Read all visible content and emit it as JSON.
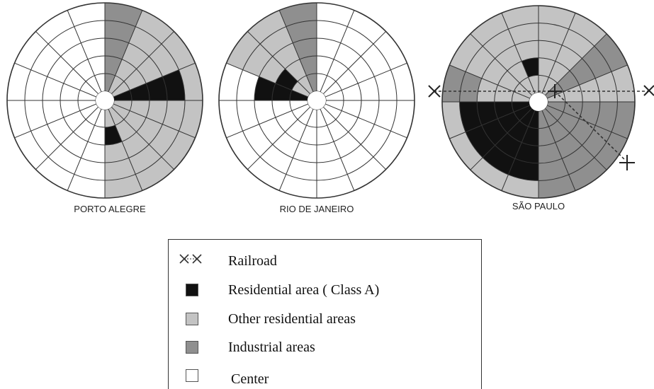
{
  "colors": {
    "class_a": "#111111",
    "other_residential": "#c3c3c3",
    "industrial": "#8f8f8f",
    "center": "#ffffff",
    "line": "#333333"
  },
  "cities": [
    {
      "label": "PORTO ALEGRE",
      "rings": 6,
      "sectors": 16,
      "regions": [
        {
          "category": "industrial",
          "from_sector": 0,
          "to_sector": 1,
          "from_ring": 1,
          "to_ring": 6
        },
        {
          "category": "other_residential",
          "from_sector": 1,
          "to_sector": 4,
          "from_ring": 1,
          "to_ring": 6
        },
        {
          "category": "class_a",
          "from_sector": 3,
          "to_sector": 4,
          "from_ring": 1,
          "to_ring": 5
        },
        {
          "category": "other_residential",
          "from_sector": 4,
          "to_sector": 8,
          "from_ring": 1,
          "to_ring": 6
        },
        {
          "category": "class_a",
          "from_sector": 7,
          "to_sector": 8,
          "from_ring": 2,
          "to_ring": 3
        }
      ]
    },
    {
      "label": "RIO DE JANEIRO",
      "rings": 6,
      "sectors": 16,
      "regions": [
        {
          "category": "industrial",
          "from_sector": 15,
          "to_sector": 16,
          "from_ring": 1,
          "to_ring": 6
        },
        {
          "category": "other_residential",
          "from_sector": 13,
          "to_sector": 15,
          "from_ring": 1,
          "to_ring": 6
        },
        {
          "category": "class_a",
          "from_sector": 13,
          "to_sector": 14,
          "from_ring": 2,
          "to_ring": 3
        },
        {
          "category": "class_a",
          "from_sector": 12,
          "to_sector": 13,
          "from_ring": 1,
          "to_ring": 4
        }
      ]
    },
    {
      "label": "SÃO PAULO",
      "rings": 6,
      "sectors": 16,
      "regions": [
        {
          "category": "other_residential",
          "from_sector": 0,
          "to_sector": 16,
          "from_ring": 1,
          "to_ring": 6
        },
        {
          "category": "industrial",
          "from_sector": 2,
          "to_sector": 3,
          "from_ring": 1,
          "to_ring": 6
        },
        {
          "category": "industrial",
          "from_sector": 4,
          "to_sector": 8,
          "from_ring": 1,
          "to_ring": 6
        },
        {
          "category": "industrial",
          "from_sector": 12,
          "to_sector": 13,
          "from_ring": 4,
          "to_ring": 6
        },
        {
          "category": "class_a",
          "from_sector": 8,
          "to_sector": 12,
          "from_ring": 1,
          "to_ring": 5
        },
        {
          "category": "class_a",
          "from_sector": 15,
          "to_sector": 16,
          "from_ring": 2,
          "to_ring": 3
        }
      ]
    }
  ],
  "legend": [
    {
      "symbol": "railroad",
      "label": "Railroad"
    },
    {
      "symbol": "class_a",
      "label": "Residential area ( Class A)"
    },
    {
      "symbol": "other_residential",
      "label": "Other residential areas"
    },
    {
      "symbol": "industrial",
      "label": "Industrial areas"
    },
    {
      "symbol": "center",
      "label": "Center"
    }
  ]
}
